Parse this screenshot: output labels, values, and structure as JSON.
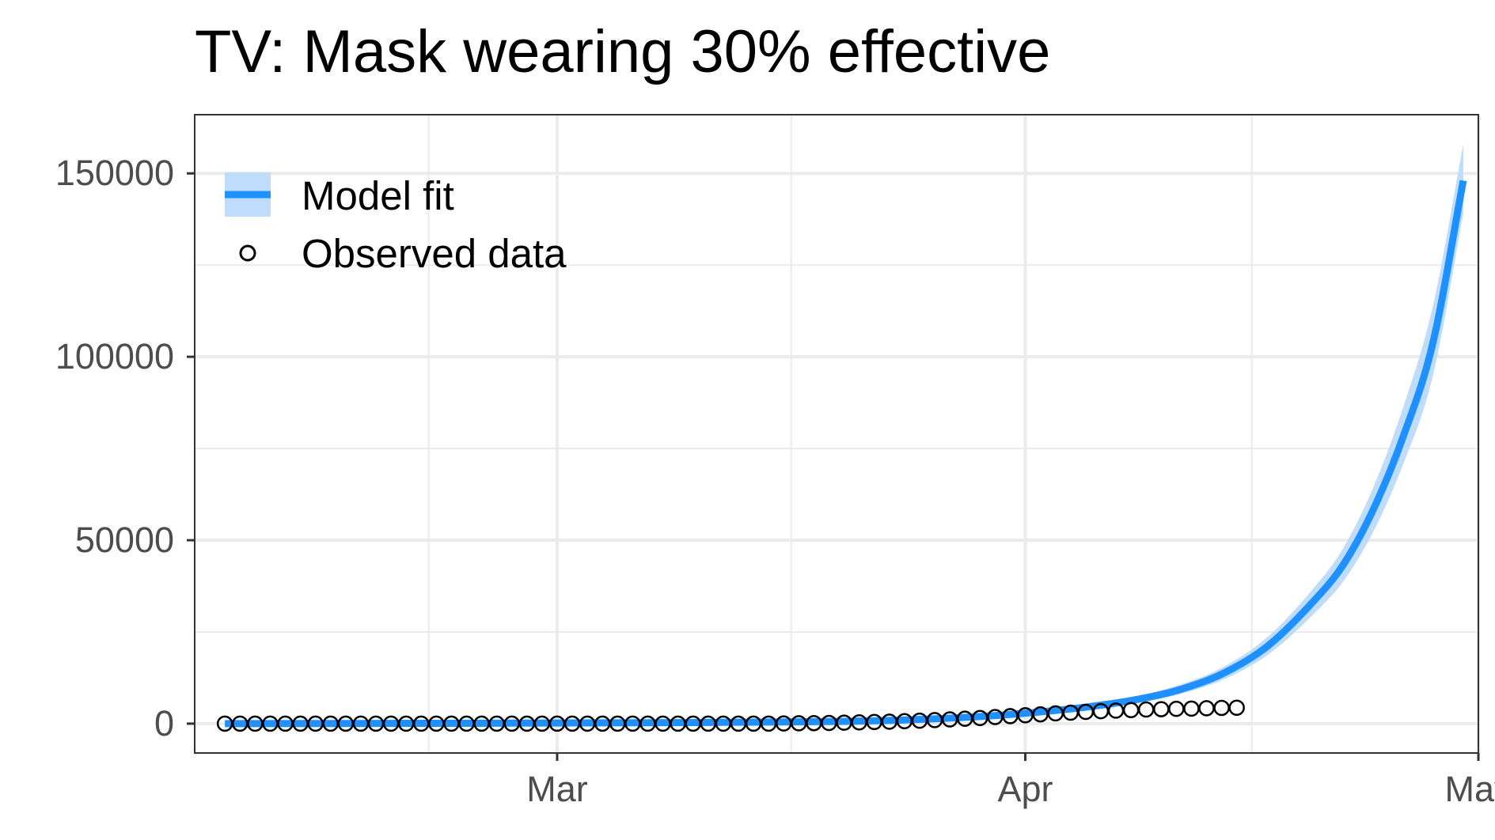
{
  "chart_data": {
    "type": "line",
    "title": "TV: Mask wearing 30% effective",
    "xlabel": "",
    "ylabel": "",
    "x_start": "2020-02-08",
    "x_range": [
      "2020-02-06",
      "2020-05-01"
    ],
    "ylim": [
      -8000,
      166000
    ],
    "y_ticks": [
      0,
      50000,
      100000,
      150000
    ],
    "y_tick_labels": [
      "0",
      "50000",
      "100000",
      "150000"
    ],
    "x_ticks": [
      "2020-03-01",
      "2020-04-01",
      "2020-05-01"
    ],
    "x_tick_labels": [
      "Mar",
      "Apr",
      "May"
    ],
    "grid": true,
    "legend_position": "top-left",
    "colors": {
      "model": "#1e90ff",
      "ribbon": "#bfdcfb",
      "points": "#000000"
    },
    "series": [
      {
        "name": "Model fit",
        "kind": "line-with-ribbon",
        "points": [
          [
            "2020-02-08",
            0
          ],
          [
            "2020-02-15",
            40
          ],
          [
            "2020-02-22",
            90
          ],
          [
            "2020-02-29",
            160
          ],
          [
            "2020-03-07",
            250
          ],
          [
            "2020-03-14",
            400
          ],
          [
            "2020-03-17",
            500
          ],
          [
            "2020-03-21",
            700
          ],
          [
            "2020-03-24",
            1000
          ],
          [
            "2020-03-27",
            1500
          ],
          [
            "2020-03-30",
            2200
          ],
          [
            "2020-04-02",
            3200
          ],
          [
            "2020-04-05",
            4500
          ],
          [
            "2020-04-08",
            6300
          ],
          [
            "2020-04-11",
            9000
          ],
          [
            "2020-04-14",
            13500
          ],
          [
            "2020-04-17",
            21000
          ],
          [
            "2020-04-20",
            33000
          ],
          [
            "2020-04-22",
            43000
          ],
          [
            "2020-04-24",
            58000
          ],
          [
            "2020-04-26",
            78000
          ],
          [
            "2020-04-28",
            104000
          ],
          [
            "2020-04-30",
            148000
          ]
        ],
        "band_upper": [
          [
            "2020-02-08",
            0
          ],
          [
            "2020-02-15",
            50
          ],
          [
            "2020-02-22",
            110
          ],
          [
            "2020-02-29",
            190
          ],
          [
            "2020-03-07",
            300
          ],
          [
            "2020-03-14",
            470
          ],
          [
            "2020-03-17",
            600
          ],
          [
            "2020-03-21",
            830
          ],
          [
            "2020-03-24",
            1180
          ],
          [
            "2020-03-27",
            1750
          ],
          [
            "2020-03-30",
            2550
          ],
          [
            "2020-04-02",
            3700
          ],
          [
            "2020-04-05",
            5200
          ],
          [
            "2020-04-08",
            7200
          ],
          [
            "2020-04-11",
            10300
          ],
          [
            "2020-04-14",
            15200
          ],
          [
            "2020-04-17",
            23500
          ],
          [
            "2020-04-20",
            36500
          ],
          [
            "2020-04-22",
            47500
          ],
          [
            "2020-04-24",
            64000
          ],
          [
            "2020-04-26",
            86000
          ],
          [
            "2020-04-28",
            114000
          ],
          [
            "2020-04-30",
            158000
          ]
        ],
        "band_lower": [
          [
            "2020-02-08",
            0
          ],
          [
            "2020-02-15",
            30
          ],
          [
            "2020-02-22",
            70
          ],
          [
            "2020-02-29",
            130
          ],
          [
            "2020-03-07",
            200
          ],
          [
            "2020-03-14",
            330
          ],
          [
            "2020-03-17",
            410
          ],
          [
            "2020-03-21",
            580
          ],
          [
            "2020-03-24",
            830
          ],
          [
            "2020-03-27",
            1250
          ],
          [
            "2020-03-30",
            1850
          ],
          [
            "2020-04-02",
            2700
          ],
          [
            "2020-04-05",
            3800
          ],
          [
            "2020-04-08",
            5400
          ],
          [
            "2020-04-11",
            7800
          ],
          [
            "2020-04-14",
            11800
          ],
          [
            "2020-04-17",
            18600
          ],
          [
            "2020-04-20",
            29500
          ],
          [
            "2020-04-22",
            38500
          ],
          [
            "2020-04-24",
            52000
          ],
          [
            "2020-04-26",
            70500
          ],
          [
            "2020-04-28",
            95000
          ],
          [
            "2020-04-30",
            139000
          ]
        ]
      },
      {
        "name": "Observed data",
        "kind": "points",
        "values": [
          0,
          0,
          0,
          0,
          0,
          0,
          0,
          0,
          0,
          0,
          0,
          0,
          0,
          0,
          0,
          0,
          0,
          0,
          0,
          0,
          0,
          0,
          0,
          0,
          0,
          0,
          0,
          0,
          0,
          0,
          0,
          0,
          0,
          0,
          0,
          0,
          0,
          50,
          100,
          150,
          200,
          280,
          360,
          450,
          550,
          680,
          820,
          980,
          1150,
          1350,
          1550,
          1800,
          2050,
          2300,
          2550,
          2800,
          3000,
          3200,
          3400,
          3550,
          3700,
          3850,
          3950,
          4050,
          4100,
          4200,
          4300,
          4350
        ]
      }
    ]
  }
}
